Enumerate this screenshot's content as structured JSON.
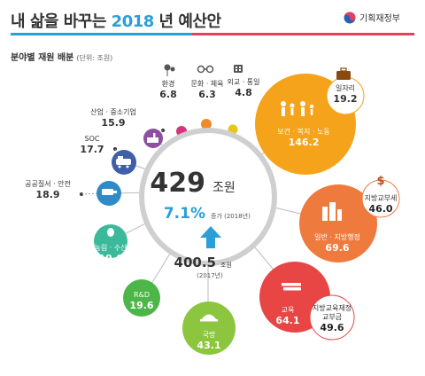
{
  "header": {
    "title_prefix": "내 삶을 바꾸는 ",
    "title_year": "2018",
    "title_suffix": " 년 예산안",
    "ministry": "기획재정부",
    "accent_blue": "#2a9fd8",
    "accent_red": "#e2425a"
  },
  "subtitle": {
    "text": "분야별 재원 배분",
    "unit": "(단위: 조원)"
  },
  "center": {
    "total_value": "429",
    "total_unit": "조원",
    "growth_pct": "7.1%",
    "growth_label": "증가 (2018년)",
    "prev_value": "400.5",
    "prev_unit": "조원",
    "prev_year": "(2017년)"
  },
  "chart_data": {
    "type": "bubble",
    "unit": "조원",
    "total": 429,
    "previous_total": 400.5,
    "growth_percent": 7.1,
    "items": [
      {
        "name": "보건 · 복지 · 노동",
        "value": 146.2,
        "color": "#f5a31a"
      },
      {
        "name": "일자리",
        "value": 19.2,
        "color": "#f5a31a"
      },
      {
        "name": "일반 · 지방행정",
        "value": 69.6,
        "color": "#ef7a3d"
      },
      {
        "name": "지방교부세",
        "value": 46.0,
        "color": "#ef7a3d"
      },
      {
        "name": "교육",
        "value": 64.1,
        "color": "#e84545"
      },
      {
        "name": "지방교육재정 교부금",
        "value": 49.6,
        "color": "#e84545"
      },
      {
        "name": "국방",
        "value": 43.1,
        "color": "#8cc63f"
      },
      {
        "name": "R&D",
        "value": 19.6,
        "color": "#4cb648"
      },
      {
        "name": "농림 · 수산",
        "value": 19.6,
        "color": "#3cb89a"
      },
      {
        "name": "공공질서 · 안전",
        "value": 18.9,
        "color": "#2e8bc8"
      },
      {
        "name": "SOC",
        "value": 17.7,
        "color": "#3f5fa8"
      },
      {
        "name": "산업 · 중소기업",
        "value": 15.9,
        "color": "#8e4fa2"
      },
      {
        "name": "환경",
        "value": 6.8,
        "color": "#d9337a"
      },
      {
        "name": "문화 · 체육",
        "value": 6.3,
        "color": "#f08a2b"
      },
      {
        "name": "외교 · 통일",
        "value": 4.8,
        "color": "#e6c619"
      }
    ]
  },
  "labels": {
    "health": {
      "name": "보건 · 복지 · 노동",
      "value": "146.2"
    },
    "jobs": {
      "name": "일자리",
      "value": "19.2"
    },
    "admin": {
      "name": "일반 · 지방행정",
      "value": "69.6"
    },
    "grant": {
      "name": "지방교부세",
      "value": "46.0"
    },
    "edu": {
      "name": "교육",
      "value": "64.1"
    },
    "edugrant": {
      "name": "지방교육재정 교부금",
      "value": "49.6"
    },
    "defense": {
      "name": "국방",
      "value": "43.1"
    },
    "rnd": {
      "name": "R&D",
      "value": "19.6"
    },
    "agri": {
      "name": "농림 · 수산",
      "value": "19.6"
    },
    "safety": {
      "name": "공공질서 · 안전",
      "value": "18.9"
    },
    "soc": {
      "name": "SOC",
      "value": "17.7"
    },
    "industry": {
      "name": "산업 · 중소기업",
      "value": "15.9"
    },
    "env": {
      "name": "환경",
      "value": "6.8"
    },
    "culture": {
      "name": "문화 · 체육",
      "value": "6.3"
    },
    "diplomacy": {
      "name": "외교 · 통일",
      "value": "4.8"
    }
  }
}
